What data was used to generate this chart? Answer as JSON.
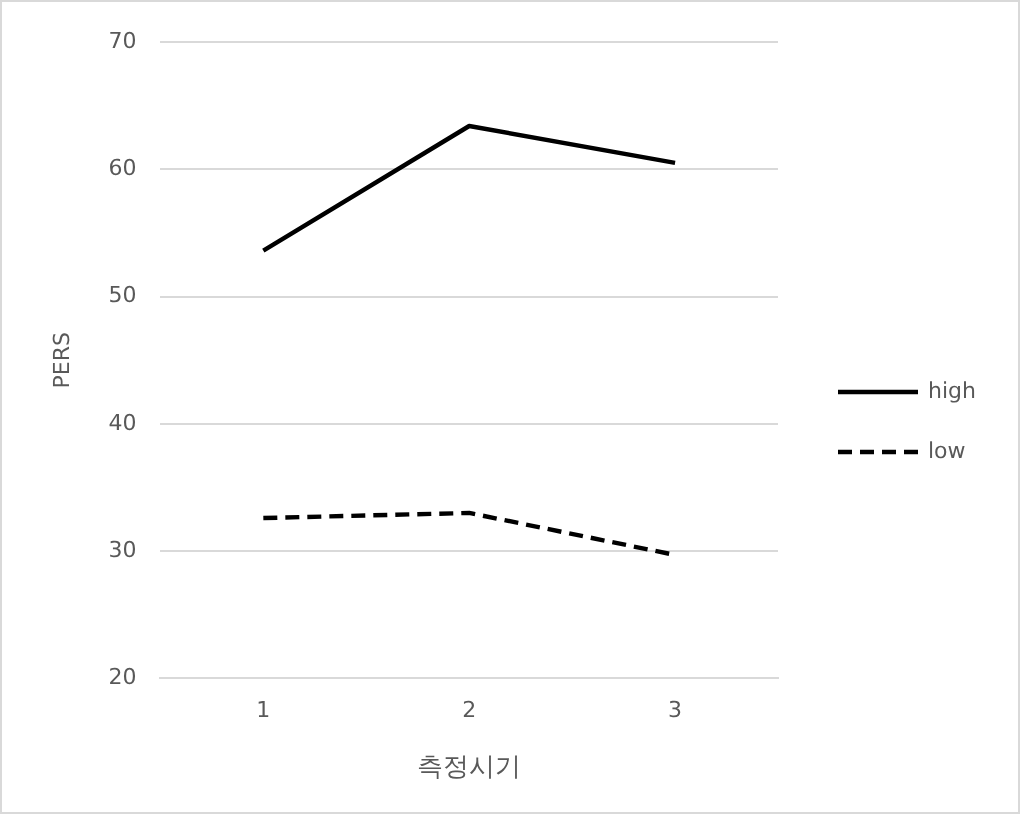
{
  "chart_data": {
    "type": "line",
    "xlabel": "측정시기",
    "ylabel": "PERS",
    "categories": [
      "1",
      "2",
      "3"
    ],
    "series": [
      {
        "name": "high",
        "color": "#000000",
        "values": [
          53.6,
          63.4,
          60.5
        ],
        "line_style": "solid"
      },
      {
        "name": "low",
        "color": "#000000",
        "values": [
          32.6,
          33.0,
          29.7
        ],
        "line_style": "dashed"
      }
    ],
    "ylim": [
      20,
      70
    ],
    "yticks": [
      20,
      30,
      40,
      50,
      60,
      70
    ],
    "grid": "y",
    "legend": "right",
    "marker": "none"
  }
}
